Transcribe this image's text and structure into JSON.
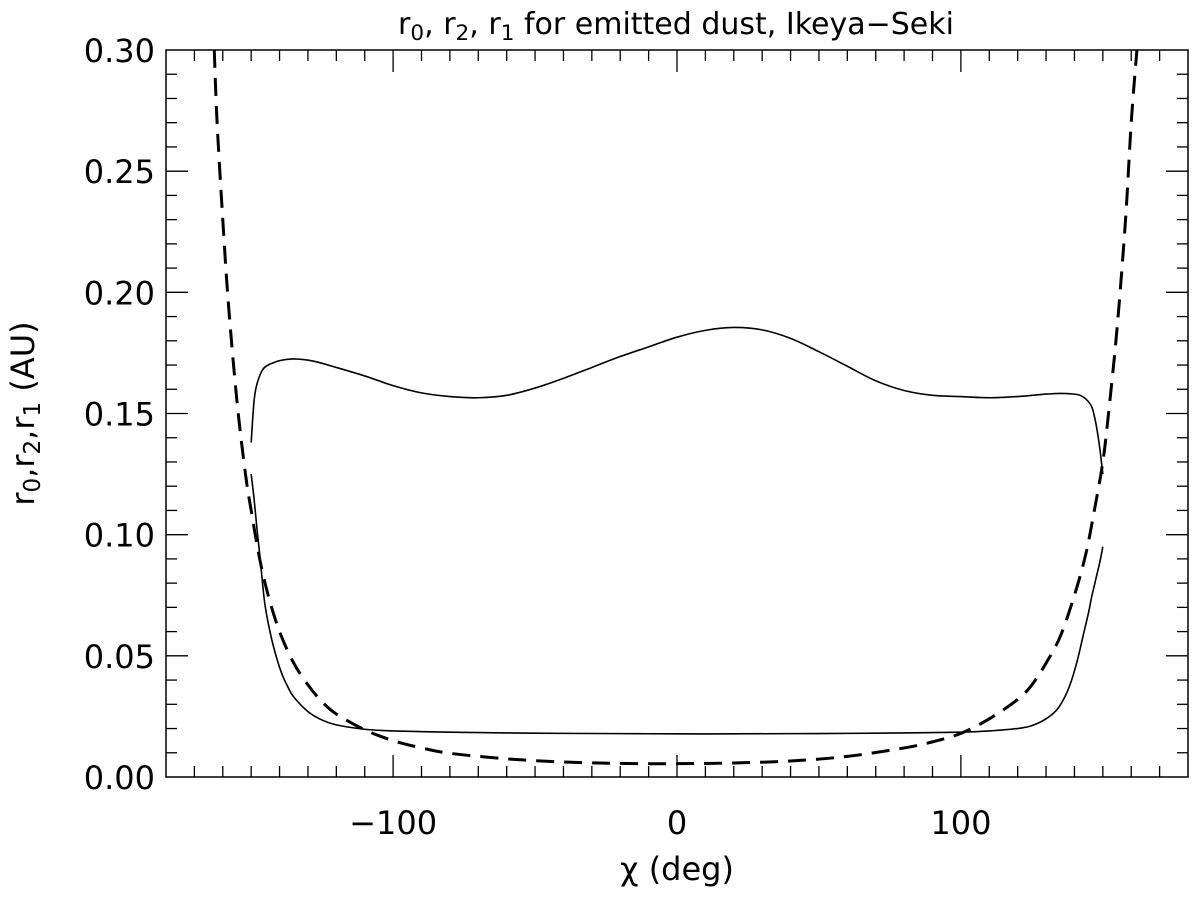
{
  "chart_data": {
    "type": "line",
    "title": {
      "parts": [
        {
          "t": "r"
        },
        {
          "t": "0",
          "sub": true
        },
        {
          "t": ", r"
        },
        {
          "t": "2",
          "sub": true
        },
        {
          "t": ", r"
        },
        {
          "t": "1",
          "sub": true
        },
        {
          "t": " for emitted dust, Ikeya−Seki"
        }
      ]
    },
    "xlabel": "χ (deg)",
    "ylabel": {
      "parts": [
        {
          "t": "r"
        },
        {
          "t": "0",
          "sub": true
        },
        {
          "t": ",r"
        },
        {
          "t": "2",
          "sub": true
        },
        {
          "t": ",r"
        },
        {
          "t": "1",
          "sub": true
        },
        {
          "t": " (AU)"
        }
      ]
    },
    "xlim": [
      -180,
      180
    ],
    "ylim": [
      0.0,
      0.3
    ],
    "xticks": [
      -100,
      0,
      100
    ],
    "xtick_labels": [
      "−100",
      "0",
      "100"
    ],
    "yticks": [
      0.0,
      0.05,
      0.1,
      0.15,
      0.2,
      0.25,
      0.3
    ],
    "ytick_labels": [
      "0.00",
      "0.05",
      "0.10",
      "0.15",
      "0.20",
      "0.25",
      "0.30"
    ],
    "grid": false,
    "legend": "none",
    "series": [
      {
        "style": "solid",
        "x": [
          -150,
          -149,
          -148,
          -146,
          -144,
          -142,
          -140,
          -135,
          -128,
          -120,
          -110,
          -100,
          -90,
          -80,
          -70,
          -60,
          -50,
          -40,
          -30,
          -20,
          -10,
          0,
          10,
          20,
          30,
          40,
          50,
          60,
          70,
          80,
          90,
          100,
          110,
          120,
          130,
          135,
          140,
          142,
          144,
          146,
          147,
          148,
          149,
          150
        ],
        "y": [
          0.138,
          0.155,
          0.162,
          0.168,
          0.17,
          0.171,
          0.1718,
          0.1725,
          0.1716,
          0.169,
          0.1655,
          0.1615,
          0.1585,
          0.157,
          0.1565,
          0.1575,
          0.1605,
          0.1645,
          0.169,
          0.1735,
          0.1775,
          0.1815,
          0.1843,
          0.1855,
          0.1845,
          0.181,
          0.1755,
          0.1695,
          0.1635,
          0.1595,
          0.1575,
          0.157,
          0.1565,
          0.157,
          0.158,
          0.1583,
          0.158,
          0.1575,
          0.156,
          0.153,
          0.149,
          0.143,
          0.135,
          0.125
        ]
      },
      {
        "style": "solid",
        "x": [
          -150,
          -149,
          -148,
          -147,
          -146,
          -145,
          -143,
          -141,
          -139,
          -137,
          -135,
          -130,
          -125,
          -120,
          -110,
          -100,
          -80,
          -60,
          -40,
          -20,
          0,
          20,
          40,
          60,
          80,
          100,
          110,
          120,
          125,
          130,
          134,
          137,
          139,
          141,
          143,
          145,
          146,
          147,
          148,
          149,
          150
        ],
        "y": [
          0.125,
          0.115,
          0.103,
          0.092,
          0.08,
          0.07,
          0.058,
          0.049,
          0.042,
          0.037,
          0.033,
          0.027,
          0.0235,
          0.0215,
          0.0197,
          0.019,
          0.0185,
          0.0182,
          0.018,
          0.0179,
          0.0178,
          0.0178,
          0.0179,
          0.018,
          0.0182,
          0.0185,
          0.019,
          0.02,
          0.0212,
          0.024,
          0.028,
          0.034,
          0.04,
          0.048,
          0.058,
          0.068,
          0.074,
          0.079,
          0.084,
          0.089,
          0.095
        ]
      },
      {
        "style": "dashed",
        "x": [
          -163,
          -162,
          -160,
          -158,
          -155,
          -152,
          -150,
          -147,
          -144,
          -140,
          -135,
          -130,
          -125,
          -120,
          -110,
          -100,
          -90,
          -80,
          -60,
          -40,
          -20,
          0,
          20,
          40,
          60,
          80,
          90,
          100,
          110,
          120,
          125,
          130,
          135,
          140,
          144,
          147,
          150,
          152,
          155,
          158,
          160,
          162
        ],
        "y": [
          0.3,
          0.27,
          0.23,
          0.195,
          0.155,
          0.125,
          0.11,
          0.09,
          0.075,
          0.06,
          0.047,
          0.038,
          0.031,
          0.026,
          0.0195,
          0.015,
          0.012,
          0.0098,
          0.0075,
          0.0062,
          0.0056,
          0.0055,
          0.0058,
          0.0066,
          0.0085,
          0.012,
          0.0145,
          0.018,
          0.024,
          0.032,
          0.038,
          0.047,
          0.058,
          0.075,
          0.092,
          0.11,
          0.13,
          0.15,
          0.185,
          0.23,
          0.27,
          0.3
        ]
      }
    ]
  }
}
